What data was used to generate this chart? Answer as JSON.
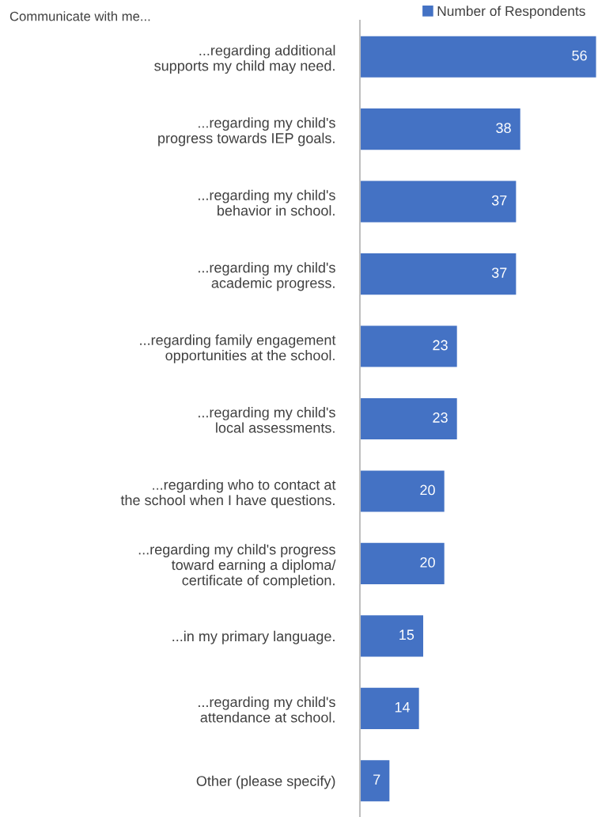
{
  "chart_data": {
    "type": "bar",
    "orientation": "horizontal",
    "title": "Communicate with me...",
    "categories": [
      "...regarding additional\nsupports my child may need.",
      "...regarding my child's\nprogress towards IEP goals.",
      "...regarding my child's\nbehavior in school.",
      "...regarding my child's\nacademic progress.",
      "...regarding family engagement\nopportunities at the school.",
      "...regarding my child's\nlocal assessments.",
      "...regarding who to contact at\nthe school when I have questions.",
      "...regarding my child's progress\ntoward earning a diploma/\ncertificate of completion.",
      "...in my primary language.",
      "...regarding my child's\nattendance at school.",
      "Other (please specify)"
    ],
    "series": [
      {
        "name": "Number of Respondents",
        "color": "#4472c4",
        "values": [
          56,
          38,
          37,
          37,
          23,
          23,
          20,
          20,
          15,
          14,
          7
        ]
      }
    ],
    "xlim": [
      0,
      56
    ],
    "data_labels": true,
    "legend": "top right",
    "grid": false,
    "tick_labels": "y"
  }
}
